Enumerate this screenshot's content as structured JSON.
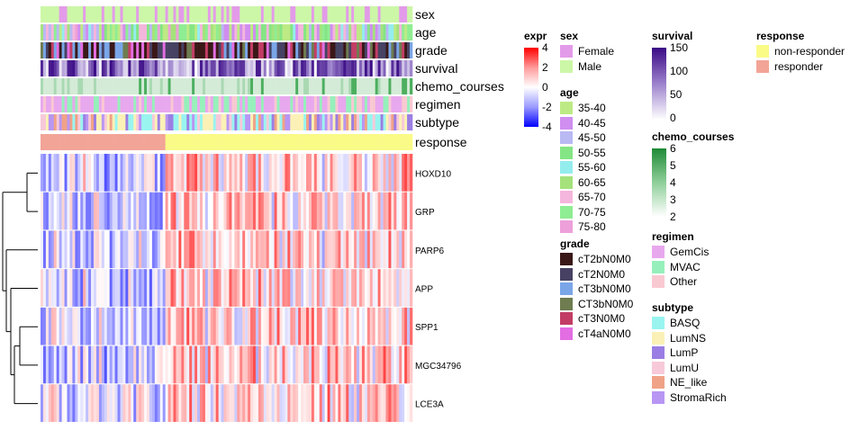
{
  "annotation_tracks": [
    "sex",
    "age",
    "grade",
    "survival",
    "chemo_courses",
    "regimen",
    "subtype",
    "response"
  ],
  "genes": [
    "HOXD10",
    "GRP",
    "PARP6",
    "APP",
    "SPP1",
    "MGC34796",
    "LCE3A"
  ],
  "legends": {
    "expr": {
      "title": "expr",
      "ticks": [
        "4",
        "2",
        "0",
        "-2",
        "-4"
      ],
      "colors": [
        "#ff0000",
        "#ffffff",
        "#0000ff"
      ]
    },
    "sex": {
      "title": "sex",
      "items": [
        {
          "label": "Female",
          "color": "#e39be9"
        },
        {
          "label": "Male",
          "color": "#ccf7a7"
        }
      ]
    },
    "age": {
      "title": "age",
      "items": [
        {
          "label": "35-40",
          "color": "#bdea84"
        },
        {
          "label": "40-45",
          "color": "#d08ef0"
        },
        {
          "label": "45-50",
          "color": "#b9b9f4"
        },
        {
          "label": "50-55",
          "color": "#84e584"
        },
        {
          "label": "55-60",
          "color": "#94eded"
        },
        {
          "label": "60-65",
          "color": "#a5e27c"
        },
        {
          "label": "65-70",
          "color": "#f4b6dc"
        },
        {
          "label": "70-75",
          "color": "#8fed93"
        },
        {
          "label": "75-80",
          "color": "#eda0d9"
        }
      ]
    },
    "grade": {
      "title": "grade",
      "items": [
        {
          "label": "cT2bN0M0",
          "color": "#3a1818"
        },
        {
          "label": "cT2N0M0",
          "color": "#474263"
        },
        {
          "label": "cT3bN0M0",
          "color": "#7aa6e8"
        },
        {
          "label": "CT3bN0M0",
          "color": "#6e7c50"
        },
        {
          "label": "cT3N0M0",
          "color": "#c23d65"
        },
        {
          "label": "cT4aN0M0",
          "color": "#e36ee3"
        }
      ]
    },
    "survival": {
      "title": "survival",
      "ticks": [
        "150",
        "100",
        "50",
        "0"
      ],
      "colors": [
        "#3a0a85",
        "#9c82cc",
        "#ffffff"
      ]
    },
    "chemo_courses": {
      "title": "chemo_courses",
      "ticks": [
        "6",
        "5",
        "4",
        "3",
        "2"
      ],
      "colors": [
        "#1f8a36",
        "#8fcf9a",
        "#ffffff"
      ]
    },
    "regimen": {
      "title": "regimen",
      "items": [
        {
          "label": "GemCis",
          "color": "#e8a8ee"
        },
        {
          "label": "MVAC",
          "color": "#96f0bb"
        },
        {
          "label": "Other",
          "color": "#f9c9d2"
        }
      ]
    },
    "subtype": {
      "title": "subtype",
      "items": [
        {
          "label": "BASQ",
          "color": "#99f4f0"
        },
        {
          "label": "LumNS",
          "color": "#fbf1b6"
        },
        {
          "label": "LumP",
          "color": "#9b7ee3"
        },
        {
          "label": "LumU",
          "color": "#f7c9d9"
        },
        {
          "label": "NE_like",
          "color": "#f0a287"
        },
        {
          "label": "StromaRich",
          "color": "#b896f3"
        }
      ]
    },
    "response": {
      "title": "response",
      "items": [
        {
          "label": "non-responder",
          "color": "#fafa87"
        },
        {
          "label": "responder",
          "color": "#f2a497"
        }
      ]
    }
  },
  "chart_data": {
    "type": "heatmap",
    "n_samples": 140,
    "responder_count": 47,
    "row_order": [
      "HOXD10",
      "GRP",
      "PARP6",
      "APP",
      "SPP1",
      "MGC34796",
      "LCE3A"
    ],
    "value_range": [
      -4,
      4
    ],
    "note_values": "sample-level expression values are too numerous to read individually; columns shown as a heatmap"
  }
}
